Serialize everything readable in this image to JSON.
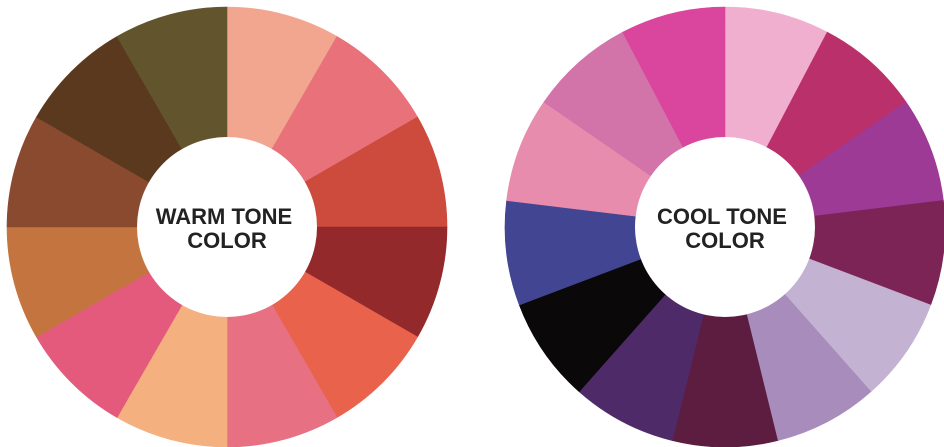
{
  "wheels": [
    {
      "id": "warm",
      "label_lines": [
        "WARM TONE",
        "COLOR"
      ],
      "start_angle_deg": -90,
      "colors": [
        "#F2A690",
        "#E8717A",
        "#CC4B3D",
        "#93292B",
        "#E9624C",
        "#E77182",
        "#F4B07F",
        "#E35A7C",
        "#C4753F",
        "#8A4A30",
        "#5B391E",
        "#62552D"
      ]
    },
    {
      "id": "cool",
      "label_lines": [
        "COOL TONE",
        "COLOR"
      ],
      "start_angle_deg": -90,
      "colors": [
        "#F0AFCE",
        "#BA306B",
        "#9C3A96",
        "#7B2455",
        "#C4B2D2",
        "#A78CBC",
        "#5C1D41",
        "#4E2B68",
        "#0A0809",
        "#414592",
        "#E78CAC",
        "#D274AA",
        "#DA459D"
      ]
    }
  ]
}
